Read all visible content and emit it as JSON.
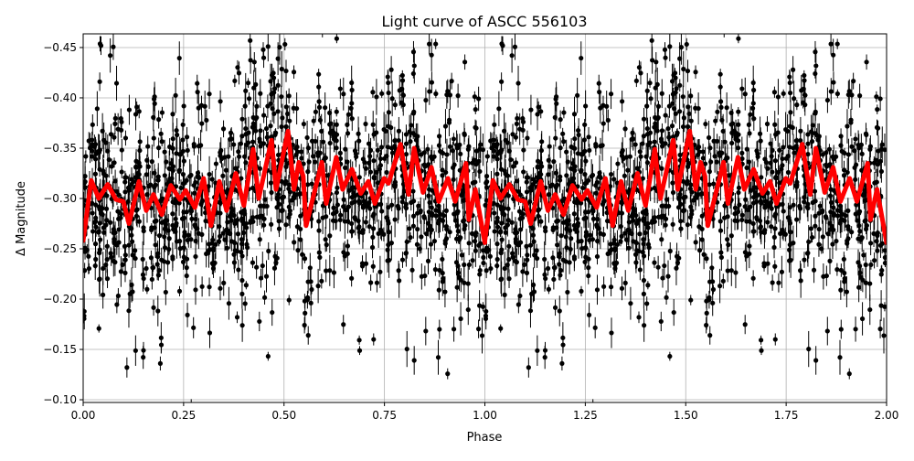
{
  "chart_data": {
    "type": "scatter",
    "title": "Light curve of ASCC 556103",
    "xlabel": "Phase",
    "ylabel": "Δ Magnitude",
    "xlim": [
      0,
      2
    ],
    "ylim": [
      -0.4636,
      -0.0973
    ],
    "y_inverted": true,
    "grid": true,
    "x_ticks": [
      "0.00",
      "0.25",
      "0.50",
      "0.75",
      "1.00",
      "1.25",
      "1.50",
      "1.75",
      "2.00"
    ],
    "x_tick_values": [
      0,
      0.25,
      0.5,
      0.75,
      1,
      1.25,
      1.5,
      1.75,
      2
    ],
    "y_ticks": [
      "−0.45",
      "−0.40",
      "−0.35",
      "−0.30",
      "−0.25",
      "−0.20",
      "−0.15",
      "−0.10"
    ],
    "y_tick_values": [
      -0.45,
      -0.4,
      -0.35,
      -0.3,
      -0.25,
      -0.2,
      -0.15,
      -0.1
    ],
    "data_series": {
      "style": "black points with vertical error bars",
      "color": "#000000",
      "phase_folded_period": 1,
      "typical_range": [
        -0.45,
        -0.1
      ]
    },
    "model_curve": {
      "color": "#ff0000",
      "period_in_phase": 1,
      "phase": [
        0,
        0.02,
        0.039,
        0.061,
        0.082,
        0.1,
        0.114,
        0.139,
        0.157,
        0.175,
        0.196,
        0.218,
        0.241,
        0.255,
        0.278,
        0.3,
        0.318,
        0.339,
        0.357,
        0.38,
        0.4,
        0.423,
        0.437,
        0.469,
        0.48,
        0.51,
        0.525,
        0.537,
        0.548,
        0.555,
        0.594,
        0.605,
        0.63,
        0.646,
        0.669,
        0.691,
        0.71,
        0.726,
        0.749,
        0.76,
        0.79,
        0.81,
        0.824,
        0.846,
        0.867,
        0.885,
        0.908,
        0.926,
        0.953,
        0.96,
        0.976,
        1.0
      ],
      "magnitude": [
        -0.258,
        -0.318,
        -0.3,
        -0.314,
        -0.299,
        -0.297,
        -0.275,
        -0.317,
        -0.288,
        -0.304,
        -0.284,
        -0.313,
        -0.299,
        -0.308,
        -0.291,
        -0.32,
        -0.273,
        -0.317,
        -0.288,
        -0.325,
        -0.293,
        -0.349,
        -0.3,
        -0.358,
        -0.309,
        -0.367,
        -0.309,
        -0.336,
        -0.322,
        -0.273,
        -0.336,
        -0.295,
        -0.341,
        -0.309,
        -0.329,
        -0.305,
        -0.317,
        -0.295,
        -0.32,
        -0.315,
        -0.354,
        -0.304,
        -0.35,
        -0.306,
        -0.331,
        -0.297,
        -0.32,
        -0.297,
        -0.335,
        -0.279,
        -0.309,
        -0.256
      ]
    }
  }
}
